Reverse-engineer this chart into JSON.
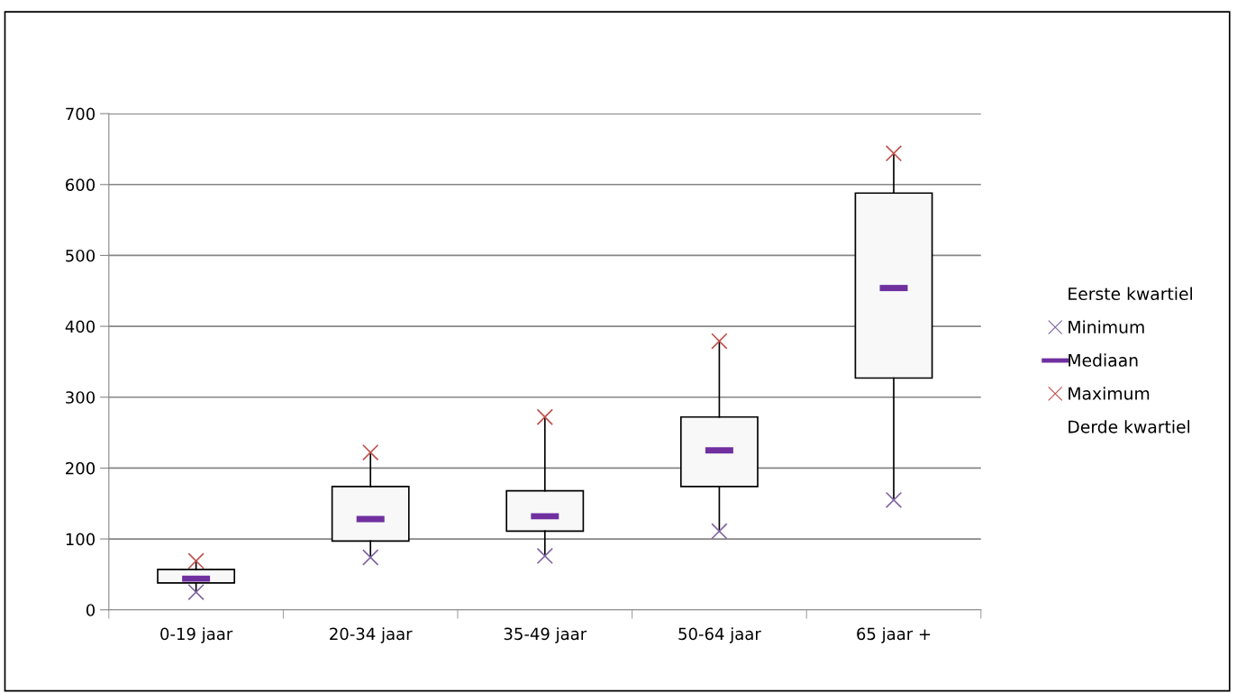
{
  "chart_data": {
    "type": "box",
    "categories": [
      "0-19 jaar",
      "20-34 jaar",
      "35-49 jaar",
      "50-64 jaar",
      "65 jaar +"
    ],
    "boxes": [
      {
        "low": 25,
        "q1": 38,
        "median": 44,
        "q3": 57,
        "high": 69
      },
      {
        "low": 74,
        "q1": 97,
        "median": 128,
        "q3": 174,
        "high": 222
      },
      {
        "low": 76,
        "q1": 111,
        "median": 132,
        "q3": 168,
        "high": 272
      },
      {
        "low": 111,
        "q1": 174,
        "median": 225,
        "q3": 272,
        "high": 379
      },
      {
        "low": 155,
        "q1": 327,
        "median": 454,
        "q3": 588,
        "high": 644
      }
    ],
    "series": [
      {
        "name": "Minimum",
        "type": "scatter",
        "color": "#8064a2",
        "marker": "cross",
        "x": [
          "0-19 jaar",
          "20-34 jaar",
          "35-49 jaar",
          "50-64 jaar",
          "65 jaar +"
        ],
        "values": [
          25,
          74,
          76,
          111,
          155
        ]
      },
      {
        "name": "Maximum",
        "type": "scatter",
        "color": "#c0504d",
        "marker": "cross",
        "x": [
          "0-19 jaar",
          "20-34 jaar",
          "35-49 jaar",
          "50-64 jaar",
          "65 jaar +"
        ],
        "values": [
          69,
          222,
          272,
          379,
          644
        ]
      }
    ],
    "annotations": [
      "Eerste kwartiel",
      "Mediaan",
      "Derde kwartiel"
    ],
    "ylim": [
      0,
      700
    ],
    "yticks": [
      0,
      100,
      200,
      300,
      400,
      500,
      600,
      700
    ],
    "grid": "y",
    "legend": "right"
  }
}
